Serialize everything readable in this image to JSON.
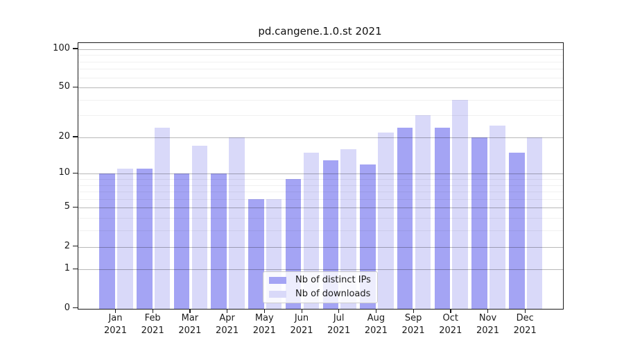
{
  "chart_data": {
    "type": "bar",
    "title": "pd.cangene.1.0.st 2021",
    "categories": [
      "Jan",
      "Feb",
      "Mar",
      "Apr",
      "May",
      "Jun",
      "Jul",
      "Aug",
      "Sep",
      "Oct",
      "Nov",
      "Dec"
    ],
    "x_tick_line2": "2021",
    "series": [
      {
        "name": "Nb of distinct IPs",
        "color": "#a4a4f4",
        "values": [
          10,
          11,
          10,
          10,
          6,
          9,
          13,
          12,
          24,
          24,
          20,
          15
        ]
      },
      {
        "name": "Nb of downloads",
        "color": "#d9d9f9",
        "values": [
          11,
          24,
          17,
          20,
          6,
          15,
          16,
          22,
          30,
          40,
          25,
          20
        ]
      }
    ],
    "yscale": "log1p",
    "ylim": [
      0,
      111.5
    ],
    "y_major_ticks": [
      0,
      1,
      2,
      5,
      10,
      20,
      50,
      100
    ],
    "y_minor_ticks": [
      3,
      4,
      6,
      7,
      8,
      9,
      30,
      40,
      60,
      70,
      80,
      90
    ],
    "grid": true,
    "legend_position": "lower center"
  }
}
